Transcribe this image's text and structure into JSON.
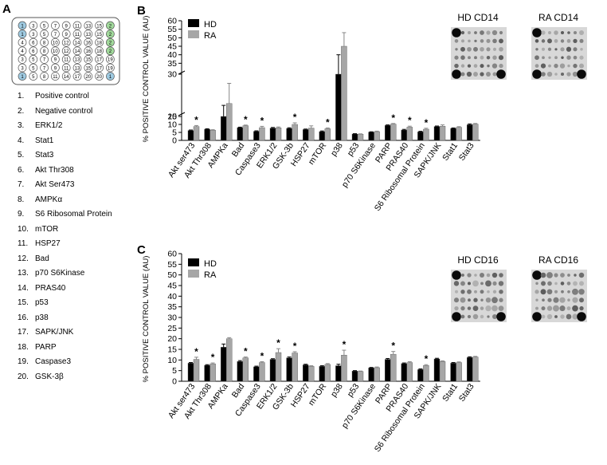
{
  "panel_a": {
    "letter": "A",
    "array_layout": [
      [
        "1",
        "3",
        "5",
        "7",
        "9",
        "11",
        "13",
        "15",
        "2"
      ],
      [
        "1",
        "3",
        "5",
        "7",
        "9",
        "11",
        "13",
        "15",
        "2"
      ],
      [
        "4",
        "6",
        "8",
        "10",
        "12",
        "14",
        "16",
        "18",
        "2"
      ],
      [
        "4",
        "6",
        "8",
        "10",
        "12",
        "14",
        "16",
        "18",
        "2"
      ],
      [
        "3",
        "5",
        "7",
        "9",
        "11",
        "13",
        "15",
        "17",
        "19"
      ],
      [
        "3",
        "5",
        "7",
        "9",
        "11",
        "13",
        "15",
        "17",
        "19"
      ],
      [
        "1",
        "5",
        "8",
        "11",
        "14",
        "17",
        "20",
        "20",
        "1"
      ]
    ],
    "legend": [
      "Positive control",
      "Negative control",
      "ERK1/2",
      "Stat1",
      "Stat3",
      "Akt Thr308",
      "Akt Ser473",
      "AMPKα",
      "S6 Ribosomal Protein",
      "mTOR",
      "HSP27",
      "Bad",
      "p70 S6Kinase",
      "PRAS40",
      "p53",
      "p38",
      "SAPK/JNK",
      "PARP",
      "Caspase3",
      "GSK-3β"
    ]
  },
  "colors": {
    "hd": "#000000",
    "ra": "#a6a6a6",
    "positive_control": "#9ecae1",
    "negative_control": "#a1d99b"
  },
  "chart_data": [
    {
      "panel": "B",
      "type": "bar",
      "ylabel": "% POSITIVE CONTROL VALUE (AU)",
      "y_segments": [
        [
          0,
          15
        ],
        [
          20,
          30
        ],
        [
          30,
          60
        ]
      ],
      "yticks": [
        0,
        5,
        10,
        15,
        20,
        30,
        35,
        40,
        45,
        50,
        55,
        60
      ],
      "categories": [
        "Akt ser473",
        "Akt Thr308",
        "AMPKa",
        "Bad",
        "Caspase3",
        "ERK1/2",
        "GSK-3b",
        "HSP27",
        "mTOR",
        "p38",
        "p53",
        "p70 S6Kinase",
        "PARP",
        "PRAS40",
        "S6 Ribosomal Protein",
        "SAPK/JNK",
        "Stat1",
        "Stat3"
      ],
      "series": [
        {
          "name": "HD",
          "values": [
            6.2,
            7.0,
            18.5,
            8.0,
            5.7,
            7.7,
            7.5,
            6.8,
            5.5,
            30,
            4.0,
            5.2,
            9.4,
            6.5,
            5.4,
            8.7,
            7.5,
            9.8
          ],
          "errors": [
            0.3,
            0.3,
            3.0,
            0.3,
            0.3,
            0.4,
            0.4,
            0.3,
            0.4,
            10,
            0.2,
            0.2,
            0.3,
            0.4,
            0.3,
            0.3,
            0.3,
            0.5
          ]
        },
        {
          "name": "RA",
          "values": [
            8.7,
            6.4,
            22.0,
            9.2,
            8.0,
            7.9,
            10.0,
            7.7,
            7.3,
            45,
            3.9,
            5.5,
            10.2,
            8.3,
            7.0,
            8.9,
            8.2,
            10.2
          ],
          "errors": [
            0.6,
            0.3,
            5.5,
            0.4,
            0.8,
            0.5,
            1.0,
            1.4,
            0.5,
            8,
            0.2,
            0.3,
            0.4,
            0.6,
            0.6,
            0.8,
            0.4,
            0.4
          ]
        }
      ],
      "significant": [
        "Akt ser473",
        "Bad",
        "Caspase3",
        "GSK-3b",
        "mTOR",
        "PARP",
        "PRAS40",
        "S6 Ribosomal Protein"
      ],
      "significance_marker": "*",
      "blot_labels": [
        "HD CD14",
        "RA CD14"
      ]
    },
    {
      "panel": "C",
      "type": "bar",
      "ylabel": "% POSITIVE CONTROL VALUE (AU)",
      "ylim": [
        0,
        60
      ],
      "yticks": [
        0,
        5,
        10,
        15,
        20,
        25,
        30,
        35,
        40,
        45,
        50,
        55,
        60
      ],
      "categories": [
        "Akt ser473",
        "Akt Thr308",
        "AMPKa",
        "Bad",
        "Caspase3",
        "ERK1/2",
        "GSK-3b",
        "HSP27",
        "mTOR",
        "p38",
        "p53",
        "p70 S6Kinase",
        "PARP",
        "PRAS40",
        "S6 Ribosomal Protein",
        "SAPK/JNK",
        "Stat1",
        "Stat3"
      ],
      "series": [
        {
          "name": "HD",
          "values": [
            8.5,
            7.5,
            16.0,
            9.3,
            6.8,
            10.3,
            11.0,
            7.7,
            7.0,
            7.3,
            4.8,
            6.3,
            10.3,
            8.3,
            5.5,
            10.5,
            8.5,
            11.2
          ],
          "errors": [
            0.3,
            0.3,
            1.5,
            0.4,
            0.3,
            0.3,
            0.4,
            0.3,
            0.3,
            0.7,
            0.2,
            0.2,
            0.4,
            0.3,
            0.3,
            0.3,
            0.3,
            0.3
          ]
        },
        {
          "name": "RA",
          "values": [
            10.3,
            8.2,
            20.0,
            11.0,
            8.8,
            13.5,
            13.3,
            7.0,
            7.9,
            12.3,
            4.6,
            6.4,
            12.7,
            8.8,
            7.4,
            9.3,
            8.8,
            11.4
          ],
          "errors": [
            1.0,
            0.4,
            0.5,
            0.4,
            0.4,
            1.8,
            0.6,
            0.3,
            0.4,
            2.3,
            0.2,
            0.3,
            1.3,
            0.4,
            0.4,
            0.3,
            0.3,
            0.3
          ]
        }
      ],
      "significant": [
        "Akt ser473",
        "Akt Thr308",
        "Bad",
        "Caspase3",
        "ERK1/2",
        "GSK-3b",
        "p38",
        "PARP",
        "S6 Ribosomal Protein"
      ],
      "significance_marker": "*",
      "blot_labels": [
        "HD CD16",
        "RA CD16"
      ]
    }
  ]
}
